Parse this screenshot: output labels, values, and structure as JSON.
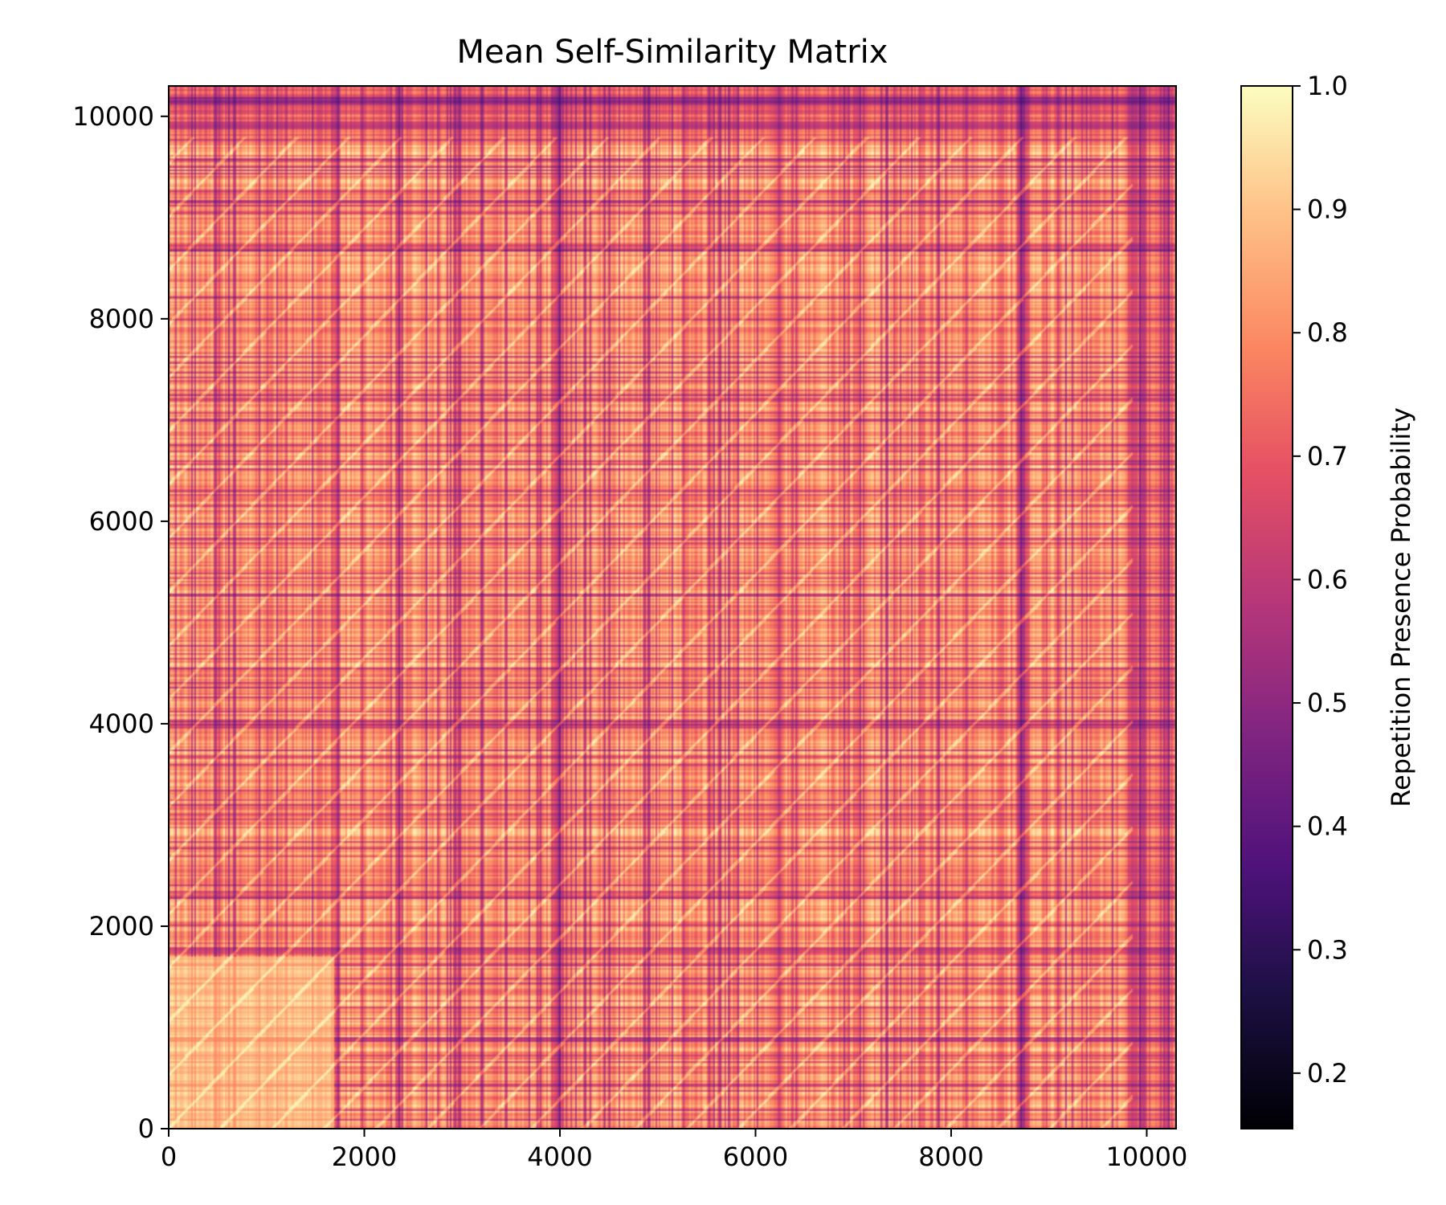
{
  "chart_data": {
    "type": "heatmap",
    "title": "Mean Self-Similarity Matrix",
    "xlabel": "",
    "ylabel": "",
    "xlim": [
      0,
      10300
    ],
    "ylim": [
      0,
      10300
    ],
    "xticks": [
      0,
      2000,
      4000,
      6000,
      8000,
      10000
    ],
    "xtick_labels": [
      "0",
      "2000",
      "4000",
      "6000",
      "8000",
      "10000"
    ],
    "yticks": [
      0,
      2000,
      4000,
      6000,
      8000,
      10000
    ],
    "ytick_labels": [
      "0",
      "2000",
      "4000",
      "6000",
      "8000",
      "10000"
    ],
    "colormap": "magma",
    "colorbar": {
      "label": "Repetition Presence Probability",
      "range": [
        0.155,
        1.0
      ],
      "ticks": [
        0.2,
        0.3,
        0.4,
        0.5,
        0.6,
        0.7,
        0.8,
        0.9,
        1.0
      ],
      "tick_labels": [
        "0.2",
        "0.3",
        "0.4",
        "0.5",
        "0.6",
        "0.7",
        "0.8",
        "0.9",
        "1.0"
      ]
    },
    "matrix_size": 10300,
    "mean_value_range": [
      0.3,
      0.98
    ],
    "dominant_value": 0.82,
    "features": {
      "diagonal": "bright main diagonal with parallel off-diagonal repetition stripes at period ~530",
      "dark_vertical_bands": [
        1700,
        2350,
        3950,
        4000,
        8700,
        8750,
        9850,
        9950,
        10200
      ],
      "dark_horizontal_bands": [
        1750,
        2300,
        4000,
        8700,
        9900,
        10150
      ],
      "bright_region": "lower-left corner (x 0-1700, y 0-1700) highest values ~0.95",
      "dark_region": "top rows (y > 9800) and right columns (x > 9850) lower values ~0.45"
    },
    "grid": false,
    "legend": "none"
  }
}
